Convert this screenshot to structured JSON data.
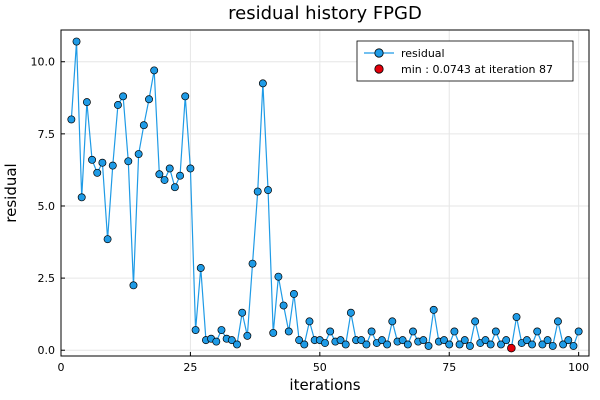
{
  "chart_data": {
    "type": "line",
    "title": "residual history FPGD",
    "xlabel": "iterations",
    "ylabel": "residual",
    "xlim": [
      0,
      102
    ],
    "ylim": [
      -0.2,
      11.1
    ],
    "xticks": [
      0,
      25,
      50,
      75,
      100
    ],
    "xtick_labels": [
      "0",
      "25",
      "50",
      "75",
      "100"
    ],
    "yticks": [
      0,
      2.5,
      5,
      7.5,
      10
    ],
    "ytick_labels": [
      "0.0",
      "2.5",
      "5.0",
      "7.5",
      "10.0"
    ],
    "grid": true,
    "legend_position": "top-right",
    "colors": {
      "series": "#1f9be6",
      "marker_edge": "#000000",
      "min": "#e3000b"
    },
    "series": [
      {
        "name": "residual",
        "x": [
          2,
          3,
          4,
          5,
          6,
          7,
          8,
          9,
          10,
          11,
          12,
          13,
          14,
          15,
          16,
          17,
          18,
          19,
          20,
          21,
          22,
          23,
          24,
          25,
          26,
          27,
          28,
          29,
          30,
          31,
          32,
          33,
          34,
          35,
          36,
          37,
          38,
          39,
          40,
          41,
          42,
          43,
          44,
          45,
          46,
          47,
          48,
          49,
          50,
          51,
          52,
          53,
          54,
          55,
          56,
          57,
          58,
          59,
          60,
          61,
          62,
          63,
          64,
          65,
          66,
          67,
          68,
          69,
          70,
          71,
          72,
          73,
          74,
          75,
          76,
          77,
          78,
          79,
          80,
          81,
          82,
          83,
          84,
          85,
          86,
          87,
          88,
          89,
          90,
          91,
          92,
          93,
          94,
          95,
          96,
          97,
          98,
          99,
          100
        ],
        "y": [
          8.0,
          10.7,
          5.3,
          8.6,
          6.6,
          6.15,
          6.5,
          3.85,
          6.4,
          8.5,
          8.8,
          6.55,
          2.25,
          6.8,
          7.8,
          8.7,
          9.7,
          6.1,
          5.9,
          6.3,
          5.65,
          6.05,
          8.8,
          6.3,
          0.7,
          2.85,
          0.35,
          0.4,
          0.3,
          0.7,
          0.4,
          0.35,
          0.2,
          1.3,
          0.5,
          3.0,
          5.5,
          9.25,
          5.55,
          0.6,
          2.55,
          1.55,
          0.65,
          1.95,
          0.35,
          0.2,
          1.0,
          0.35,
          0.35,
          0.25,
          0.65,
          0.3,
          0.35,
          0.2,
          1.3,
          0.35,
          0.35,
          0.2,
          0.65,
          0.25,
          0.35,
          0.2,
          1.0,
          0.3,
          0.35,
          0.2,
          0.65,
          0.3,
          0.35,
          0.15,
          1.4,
          0.3,
          0.35,
          0.2,
          0.65,
          0.2,
          0.35,
          0.15,
          1.0,
          0.25,
          0.35,
          0.2,
          0.65,
          0.2,
          0.35,
          0.0743,
          1.15,
          0.25,
          0.35,
          0.2,
          0.65,
          0.2,
          0.35,
          0.15,
          1.0,
          0.2,
          0.35,
          0.15,
          0.65
        ]
      }
    ],
    "min_point": {
      "label": "min : 0.0743 at iteration 87",
      "x": 87,
      "y": 0.0743
    }
  }
}
